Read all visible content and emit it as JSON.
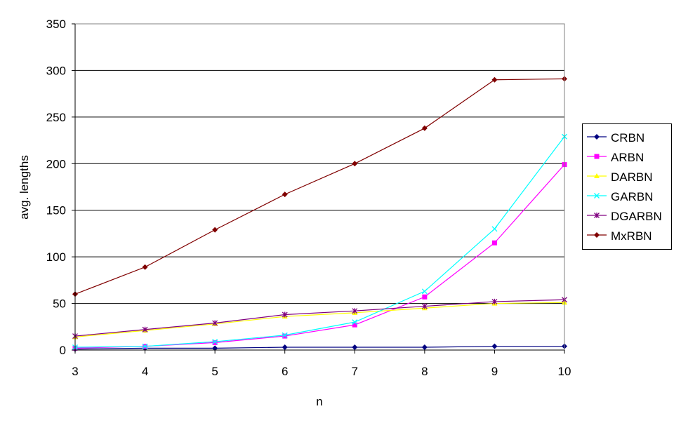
{
  "chart_data": {
    "type": "line",
    "title": "",
    "xlabel": "n",
    "ylabel": "avg. lengths",
    "x": [
      3,
      4,
      5,
      6,
      7,
      8,
      9,
      10
    ],
    "xlim": [
      3,
      10
    ],
    "ylim": [
      0,
      350
    ],
    "yticks": [
      0,
      50,
      100,
      150,
      200,
      250,
      300,
      350
    ],
    "grid": "horizontal",
    "legend_position": "right",
    "series": [
      {
        "name": "CRBN",
        "color": "#000080",
        "marker": "diamond",
        "values": [
          1,
          2,
          2,
          3,
          3,
          3,
          4,
          4
        ]
      },
      {
        "name": "ARBN",
        "color": "#ff00ff",
        "marker": "square",
        "values": [
          2,
          4,
          8,
          15,
          27,
          57,
          115,
          199
        ]
      },
      {
        "name": "DARBN",
        "color": "#ffff00",
        "marker": "triangle",
        "values": [
          14,
          21,
          28,
          36,
          40,
          45,
          50,
          51
        ]
      },
      {
        "name": "GARBN",
        "color": "#00ffff",
        "marker": "x",
        "values": [
          3,
          4,
          9,
          16,
          30,
          63,
          130,
          229
        ]
      },
      {
        "name": "DGARBN",
        "color": "#800080",
        "marker": "asterisk",
        "values": [
          15,
          22,
          29,
          38,
          42,
          47,
          52,
          54
        ]
      },
      {
        "name": "MxRBN",
        "color": "#800000",
        "marker": "diamond",
        "values": [
          60,
          89,
          129,
          167,
          200,
          238,
          290,
          291
        ]
      }
    ]
  }
}
